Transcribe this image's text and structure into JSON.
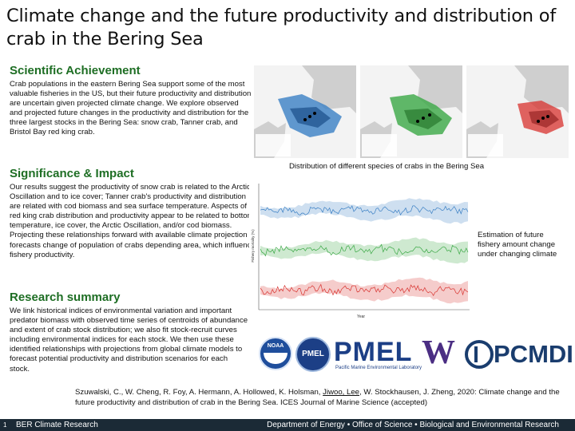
{
  "title": "Climate change and the future productivity and distribution of crab in the Bering Sea",
  "sections": {
    "scientific_achievement": {
      "heading": "Scientific Achievement",
      "text": "Crab populations in the eastern Bering Sea support some of the most valuable fisheries in the US, but their future productivity and distribution are uncertain given projected climate change. We explore observed and projected future changes in the productivity and distribution for the three largest stocks in the Bering Sea: snow crab, Tanner crab, and Bristol Bay red king crab."
    },
    "significance": {
      "heading": "Significance & Impact",
      "text": "Our results suggest the productivity of snow crab is related to the Arctic Oscillation and to ice cover; Tanner crab's productivity and distribution are related with cod biomass and sea surface temperature. Aspects of red king crab distribution and productivity appear to be related to bottom temperature, ice cover, the Arctic Oscillation, and/or cod biomass. Projecting these relationships forward with available climate projection forecasts change of population of crabs depending area, which influence fishery productivity."
    },
    "research_summary": {
      "heading": "Research summary",
      "text": "We link historical indices of environmental variation and important predator biomass with observed time series of centroids of abundance and extent of crab stock distribution; we also fit stock-recruit curves including environmental indices for each stock. We then use these identified relationships with projections from global climate models to forecast potential productivity and distribution scenarios for each stock."
    }
  },
  "figures": {
    "map_caption": "Distribution of different species of crabs in the Bering Sea",
    "timeseries_caption": "Estimation of future fishery amount change under changing climate",
    "ts_xlabel": "Year",
    "ts_ylabel": "Fishery mortality (%)"
  },
  "logos": {
    "noaa": "NOAA",
    "pmel_round": "PMEL",
    "pmel": "PMEL",
    "pmel_sub": "Pacific Marine Environmental Laboratory",
    "uw": "W",
    "pcmdi": "PCMDI"
  },
  "citation": {
    "before": "Szuwalski, C., W. Cheng, R. Foy, A. Hermann, A. Hollowed, K. Holsman, ",
    "underlined": "Jiwoo, Lee",
    "after": ", W. Stockhausen, J. Zheng, 2020: Climate change and the future productivity and distribution of crab in the Bering Sea. ICES Journal of Marine Science (accepted)"
  },
  "footer": {
    "page_number": "1",
    "left": "BER Climate Research",
    "right": "Department of Energy • Office of Science • Biological and Environmental Research"
  },
  "colors": {
    "heading_green": "#1e6e24",
    "snow_crab_blue": "#3a7fc4",
    "tanner_crab_green": "#3aa845",
    "red_king_crab_red": "#d8322e",
    "footer_bg": "#1b2a36"
  }
}
